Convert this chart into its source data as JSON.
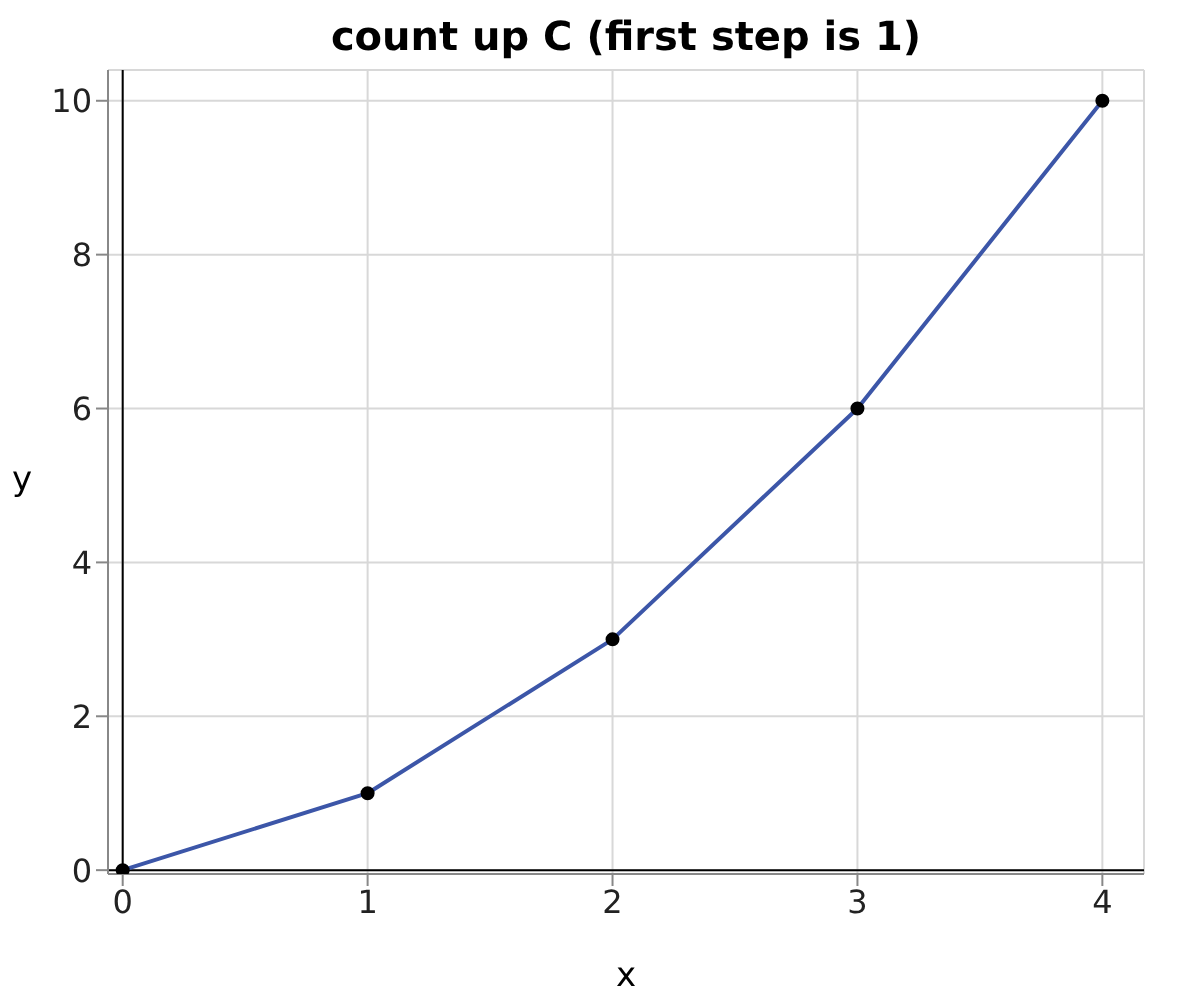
{
  "chart_data": {
    "type": "line",
    "title": "count up C (first step is 1)",
    "xlabel": "x",
    "ylabel": "y",
    "x": [
      0,
      1,
      2,
      3,
      4
    ],
    "series": [
      {
        "color": "#3c56a8",
        "values": [
          0,
          1,
          3,
          6,
          10
        ]
      }
    ],
    "xlim": [
      -0.06,
      4.17
    ],
    "ylim": [
      -0.05,
      10.4
    ],
    "xticks": [
      0,
      1,
      2,
      3,
      4
    ],
    "yticks": [
      0,
      2,
      4,
      6,
      8,
      10
    ],
    "grid": true,
    "marker": "circle"
  }
}
